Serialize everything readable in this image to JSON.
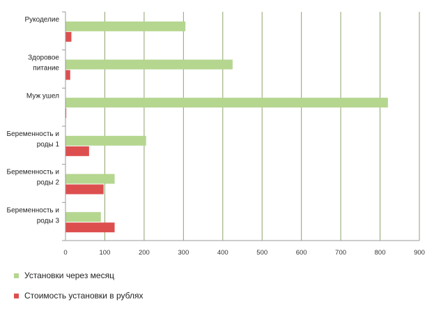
{
  "chart_data": {
    "type": "bar",
    "orientation": "horizontal",
    "title": "",
    "xlabel": "",
    "ylabel": "",
    "categories": [
      [
        "Рукоделие"
      ],
      [
        "Здоровое",
        "питание"
      ],
      [
        "Муж ушел"
      ],
      [
        "Беременность и",
        "роды 1"
      ],
      [
        "Беременность и",
        "роды 2"
      ],
      [
        "Беременность и",
        "роды 3"
      ]
    ],
    "series": [
      {
        "name": "Установки через месяц",
        "color": "#b5d68f",
        "values": [
          305,
          425,
          820,
          205,
          125,
          90
        ]
      },
      {
        "name": "Стоимость установки в рублях",
        "color": "#dd4f4f",
        "values": [
          15,
          12,
          2,
          60,
          97,
          125
        ]
      }
    ],
    "xlim": [
      0,
      900
    ],
    "xticks": [
      0,
      100,
      200,
      300,
      400,
      500,
      600,
      700,
      800,
      900
    ],
    "grid": "vertical",
    "legend_position": "bottom-left"
  }
}
